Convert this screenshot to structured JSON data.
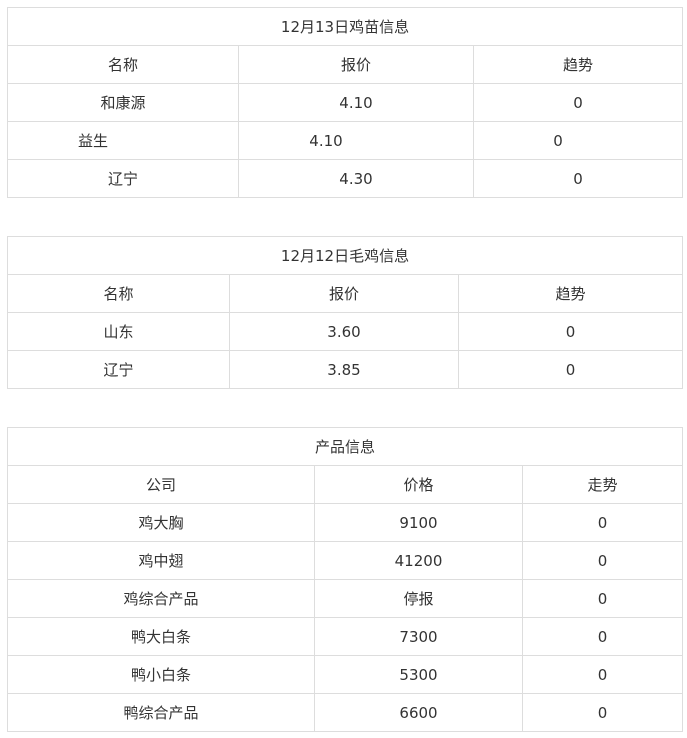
{
  "tables": [
    {
      "title": "12月13日鸡苗信息",
      "headers": [
        "名称",
        "报价",
        "趋势"
      ],
      "rows": [
        [
          "和康源",
          "4.10",
          "0"
        ],
        [
          "益生",
          "4.10",
          "0"
        ],
        [
          "辽宁",
          "4.30",
          "0"
        ]
      ]
    },
    {
      "title": "12月12日毛鸡信息",
      "headers": [
        "名称",
        "报价",
        "趋势"
      ],
      "rows": [
        [
          "山东",
          "3.60",
          "0"
        ],
        [
          "辽宁",
          "3.85",
          "0"
        ]
      ]
    },
    {
      "title": "产品信息",
      "headers": [
        "公司",
        "价格",
        "走势"
      ],
      "rows": [
        [
          "鸡大胸",
          "9100",
          "0"
        ],
        [
          "鸡中翅",
          "41200",
          "0"
        ],
        [
          "鸡综合产品",
          "停报",
          "0"
        ],
        [
          "鸭大白条",
          "7300",
          "0"
        ],
        [
          "鸭小白条",
          "5300",
          "0"
        ],
        [
          "鸭综合产品",
          "6600",
          "0"
        ]
      ]
    }
  ]
}
